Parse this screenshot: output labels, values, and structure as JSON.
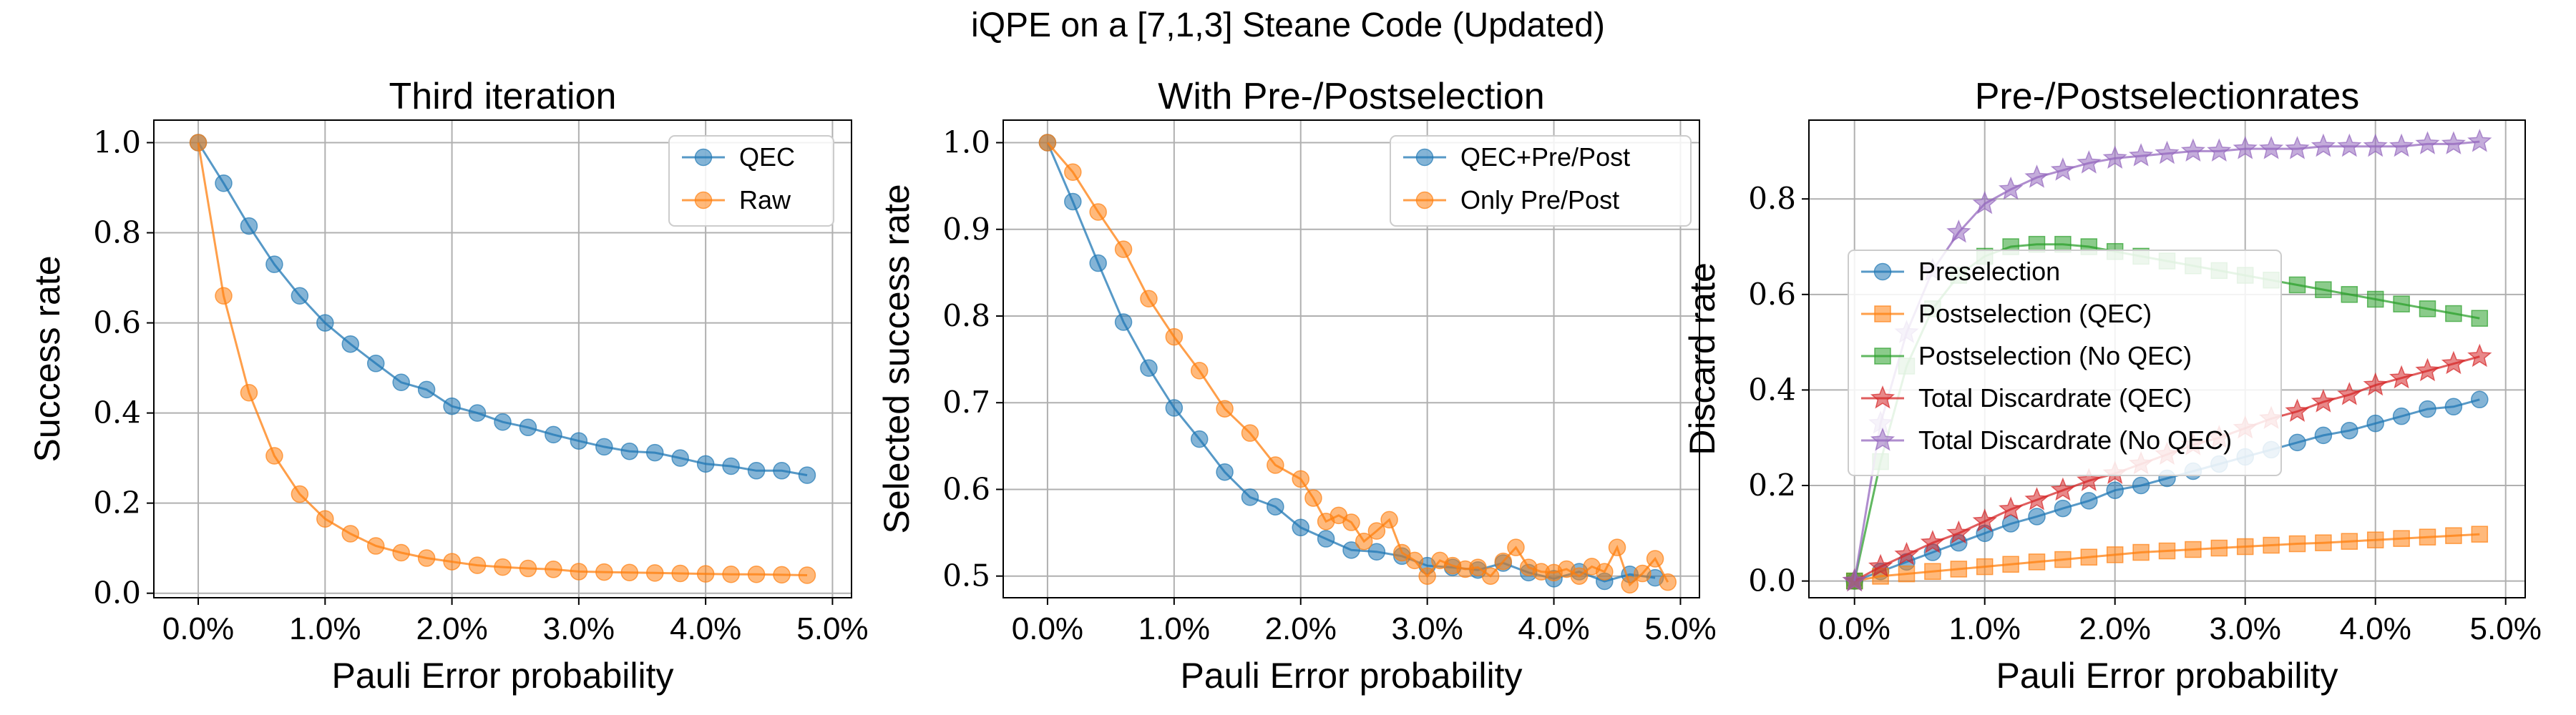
{
  "figure": {
    "suptitle": "iQPE on a [7,1,3] Steane Code (Updated)"
  },
  "colors": {
    "blue": "#1f77b4",
    "orange": "#ff7f0e",
    "green": "#2ca02c",
    "red": "#d62728",
    "purple": "#9467bd"
  },
  "chart_data": [
    {
      "type": "line",
      "title": "Third iteration",
      "xlabel": "Pauli Error probability",
      "ylabel": "Success rate",
      "xlim": [
        -0.0035,
        0.0515
      ],
      "ylim": [
        -0.01,
        1.05
      ],
      "xticks": [
        0,
        0.01,
        0.02,
        0.03,
        0.04,
        0.05
      ],
      "xtick_labels": [
        "0.0%",
        "1.0%",
        "2.0%",
        "3.0%",
        "4.0%",
        "5.0%"
      ],
      "yticks": [
        0,
        0.2,
        0.4,
        0.6,
        0.8,
        1.0
      ],
      "ytick_labels": [
        "0.0",
        "0.2",
        "0.4",
        "0.6",
        "0.8",
        "1.0"
      ],
      "grid": true,
      "legend": "top-right",
      "x": [
        0,
        0.002,
        0.004,
        0.006,
        0.008,
        0.01,
        0.012,
        0.014,
        0.016,
        0.018,
        0.02,
        0.022,
        0.024,
        0.026,
        0.028,
        0.03,
        0.032,
        0.034,
        0.036,
        0.038,
        0.04,
        0.042,
        0.044,
        0.046,
        0.048
      ],
      "series": [
        {
          "name": "QEC",
          "marker": "circle",
          "color": "#1f77b4",
          "values": [
            1.0,
            0.91,
            0.815,
            0.73,
            0.66,
            0.6,
            0.553,
            0.51,
            0.468,
            0.452,
            0.415,
            0.4,
            0.38,
            0.368,
            0.352,
            0.338,
            0.325,
            0.315,
            0.312,
            0.3,
            0.287,
            0.282,
            0.272,
            0.272,
            0.262
          ]
        },
        {
          "name": "Raw",
          "marker": "circle",
          "color": "#ff7f0e",
          "values": [
            1.0,
            0.66,
            0.445,
            0.305,
            0.22,
            0.165,
            0.132,
            0.105,
            0.09,
            0.078,
            0.07,
            0.062,
            0.058,
            0.055,
            0.053,
            0.048,
            0.047,
            0.046,
            0.045,
            0.044,
            0.043,
            0.042,
            0.042,
            0.041,
            0.04
          ]
        }
      ]
    },
    {
      "type": "line",
      "title": "With Pre-/Postselection",
      "xlabel": "Pauli Error probability",
      "ylabel": "Selected success rate",
      "xlim": [
        -0.0035,
        0.0515
      ],
      "ylim": [
        0.475,
        1.026
      ],
      "xticks": [
        0,
        0.01,
        0.02,
        0.03,
        0.04,
        0.05
      ],
      "xtick_labels": [
        "0.0%",
        "1.0%",
        "2.0%",
        "3.0%",
        "4.0%",
        "5.0%"
      ],
      "yticks": [
        0.5,
        0.6,
        0.7,
        0.8,
        0.9,
        1.0
      ],
      "ytick_labels": [
        "0.5",
        "0.6",
        "0.7",
        "0.8",
        "0.9",
        "1.0"
      ],
      "grid": true,
      "legend": "top-right",
      "series": [
        {
          "name": "QEC+Pre/Post",
          "marker": "circle",
          "color": "#1f77b4",
          "x": [
            0,
            0.002,
            0.004,
            0.006,
            0.008,
            0.01,
            0.012,
            0.014,
            0.016,
            0.018,
            0.02,
            0.022,
            0.024,
            0.026,
            0.028,
            0.03,
            0.032,
            0.034,
            0.036,
            0.038,
            0.04,
            0.042,
            0.044,
            0.046,
            0.048
          ],
          "values": [
            1.0,
            0.932,
            0.861,
            0.793,
            0.74,
            0.694,
            0.658,
            0.62,
            0.591,
            0.58,
            0.556,
            0.543,
            0.53,
            0.528,
            0.523,
            0.512,
            0.51,
            0.507,
            0.515,
            0.504,
            0.497,
            0.505,
            0.494,
            0.502,
            0.498
          ]
        },
        {
          "name": "Only Pre/Post",
          "marker": "circle",
          "color": "#ff7f0e",
          "x": [
            0,
            0.002,
            0.004,
            0.006,
            0.008,
            0.01,
            0.012,
            0.014,
            0.016,
            0.018,
            0.02,
            0.021,
            0.022,
            0.023,
            0.024,
            0.025,
            0.026,
            0.027,
            0.028,
            0.029,
            0.03,
            0.031,
            0.032,
            0.033,
            0.034,
            0.035,
            0.036,
            0.037,
            0.038,
            0.039,
            0.04,
            0.041,
            0.042,
            0.043,
            0.044,
            0.045,
            0.046,
            0.047,
            0.048,
            0.049
          ],
          "values": [
            1.0,
            0.966,
            0.92,
            0.877,
            0.82,
            0.776,
            0.737,
            0.693,
            0.665,
            0.628,
            0.612,
            0.59,
            0.563,
            0.57,
            0.562,
            0.54,
            0.552,
            0.565,
            0.527,
            0.518,
            0.5,
            0.518,
            0.512,
            0.508,
            0.51,
            0.5,
            0.517,
            0.533,
            0.51,
            0.505,
            0.504,
            0.508,
            0.5,
            0.511,
            0.505,
            0.533,
            0.49,
            0.503,
            0.52,
            0.493
          ]
        }
      ]
    },
    {
      "type": "line",
      "title": "Pre-/Postselectionrates",
      "xlabel": "Pauli Error probability",
      "ylabel": "Discard rate",
      "xlim": [
        -0.0035,
        0.0515
      ],
      "ylim": [
        -0.035,
        0.965
      ],
      "xticks": [
        0,
        0.01,
        0.02,
        0.03,
        0.04,
        0.05
      ],
      "xtick_labels": [
        "0.0%",
        "1.0%",
        "2.0%",
        "3.0%",
        "4.0%",
        "5.0%"
      ],
      "yticks": [
        0,
        0.2,
        0.4,
        0.6,
        0.8
      ],
      "ytick_labels": [
        "0.0",
        "0.2",
        "0.4",
        "0.6",
        "0.8"
      ],
      "grid": true,
      "legend": "center-left",
      "x": [
        0,
        0.002,
        0.004,
        0.006,
        0.008,
        0.01,
        0.012,
        0.014,
        0.016,
        0.018,
        0.02,
        0.022,
        0.024,
        0.026,
        0.028,
        0.03,
        0.032,
        0.034,
        0.036,
        0.038,
        0.04,
        0.042,
        0.044,
        0.046,
        0.048
      ],
      "series": [
        {
          "name": "Preselection",
          "marker": "circle",
          "color": "#1f77b4",
          "values": [
            0.0,
            0.02,
            0.04,
            0.06,
            0.08,
            0.1,
            0.12,
            0.135,
            0.152,
            0.168,
            0.19,
            0.2,
            0.215,
            0.23,
            0.245,
            0.26,
            0.275,
            0.29,
            0.305,
            0.315,
            0.33,
            0.345,
            0.36,
            0.365,
            0.38
          ]
        },
        {
          "name": "Postselection (QEC)",
          "marker": "square",
          "color": "#ff7f0e",
          "values": [
            0.0,
            0.01,
            0.015,
            0.02,
            0.025,
            0.03,
            0.035,
            0.04,
            0.045,
            0.05,
            0.055,
            0.06,
            0.063,
            0.066,
            0.069,
            0.072,
            0.075,
            0.078,
            0.08,
            0.083,
            0.086,
            0.089,
            0.092,
            0.095,
            0.098
          ]
        },
        {
          "name": "Postselection (No QEC)",
          "marker": "square",
          "color": "#2ca02c",
          "values": [
            0.0,
            0.25,
            0.45,
            0.57,
            0.64,
            0.68,
            0.7,
            0.705,
            0.705,
            0.7,
            0.69,
            0.68,
            0.67,
            0.66,
            0.65,
            0.64,
            0.63,
            0.62,
            0.61,
            0.6,
            0.59,
            0.58,
            0.57,
            0.56,
            0.55
          ]
        },
        {
          "name": "Total Discardrate (QEC)",
          "marker": "star",
          "color": "#d62728",
          "values": [
            0.0,
            0.03,
            0.055,
            0.08,
            0.1,
            0.125,
            0.15,
            0.17,
            0.19,
            0.21,
            0.225,
            0.245,
            0.265,
            0.285,
            0.3,
            0.32,
            0.34,
            0.355,
            0.375,
            0.39,
            0.41,
            0.425,
            0.44,
            0.455,
            0.47
          ]
        },
        {
          "name": "Total Discardrate (No QEC)",
          "marker": "star",
          "color": "#9467bd",
          "values": [
            0.0,
            0.33,
            0.52,
            0.65,
            0.73,
            0.79,
            0.82,
            0.845,
            0.86,
            0.875,
            0.885,
            0.89,
            0.895,
            0.9,
            0.9,
            0.905,
            0.905,
            0.905,
            0.91,
            0.91,
            0.91,
            0.91,
            0.915,
            0.915,
            0.92
          ]
        }
      ]
    }
  ]
}
